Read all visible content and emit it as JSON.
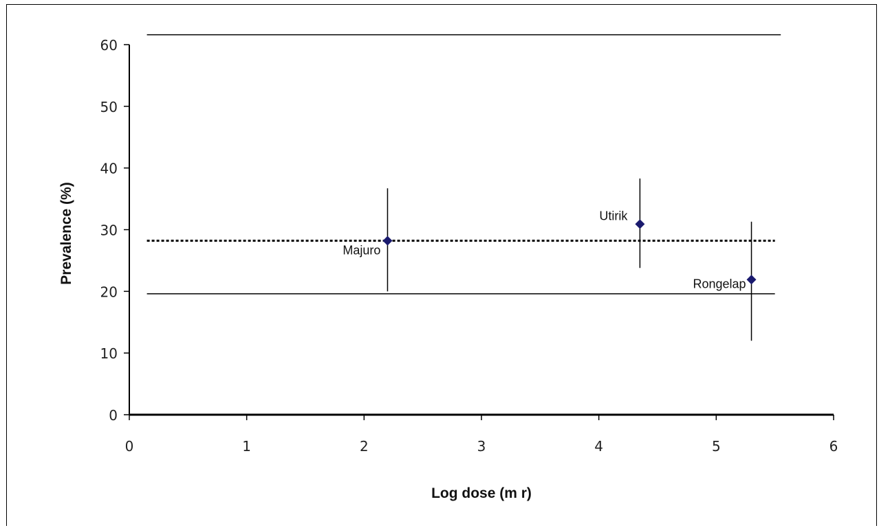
{
  "chart_data": {
    "type": "scatter",
    "title": "",
    "xlabel": "Log dose (m r)",
    "ylabel": "Prevalence (%)",
    "xlim": [
      0,
      6
    ],
    "ylim": [
      0,
      60
    ],
    "x_ticks": [
      "0",
      "1",
      "2",
      "3",
      "4",
      "5",
      "6"
    ],
    "y_ticks": [
      "0",
      "10",
      "20",
      "30",
      "40",
      "50",
      "60"
    ],
    "grid": false,
    "legend": "none",
    "marker_color": "#1a1a6e",
    "points": [
      {
        "label": "Majuro",
        "x": 2.2,
        "y": 28.2,
        "err_low": 20.0,
        "err_high": 36.7
      },
      {
        "label": "Utirik",
        "x": 4.35,
        "y": 30.9,
        "err_low": 23.8,
        "err_high": 38.3
      },
      {
        "label": "Rongelap",
        "x": 5.3,
        "y": 21.9,
        "err_low": 12.0,
        "err_high": 31.3
      }
    ],
    "reference_lines": [
      {
        "name": "upper",
        "y": 61.6,
        "x_from": 0.15,
        "x_to": 5.55,
        "style": "solid"
      },
      {
        "name": "mean",
        "y": 28.2,
        "x_from": 0.15,
        "x_to": 5.5,
        "style": "dotted"
      },
      {
        "name": "lower",
        "y": 19.6,
        "x_from": 0.15,
        "x_to": 5.5,
        "style": "solid"
      }
    ]
  }
}
